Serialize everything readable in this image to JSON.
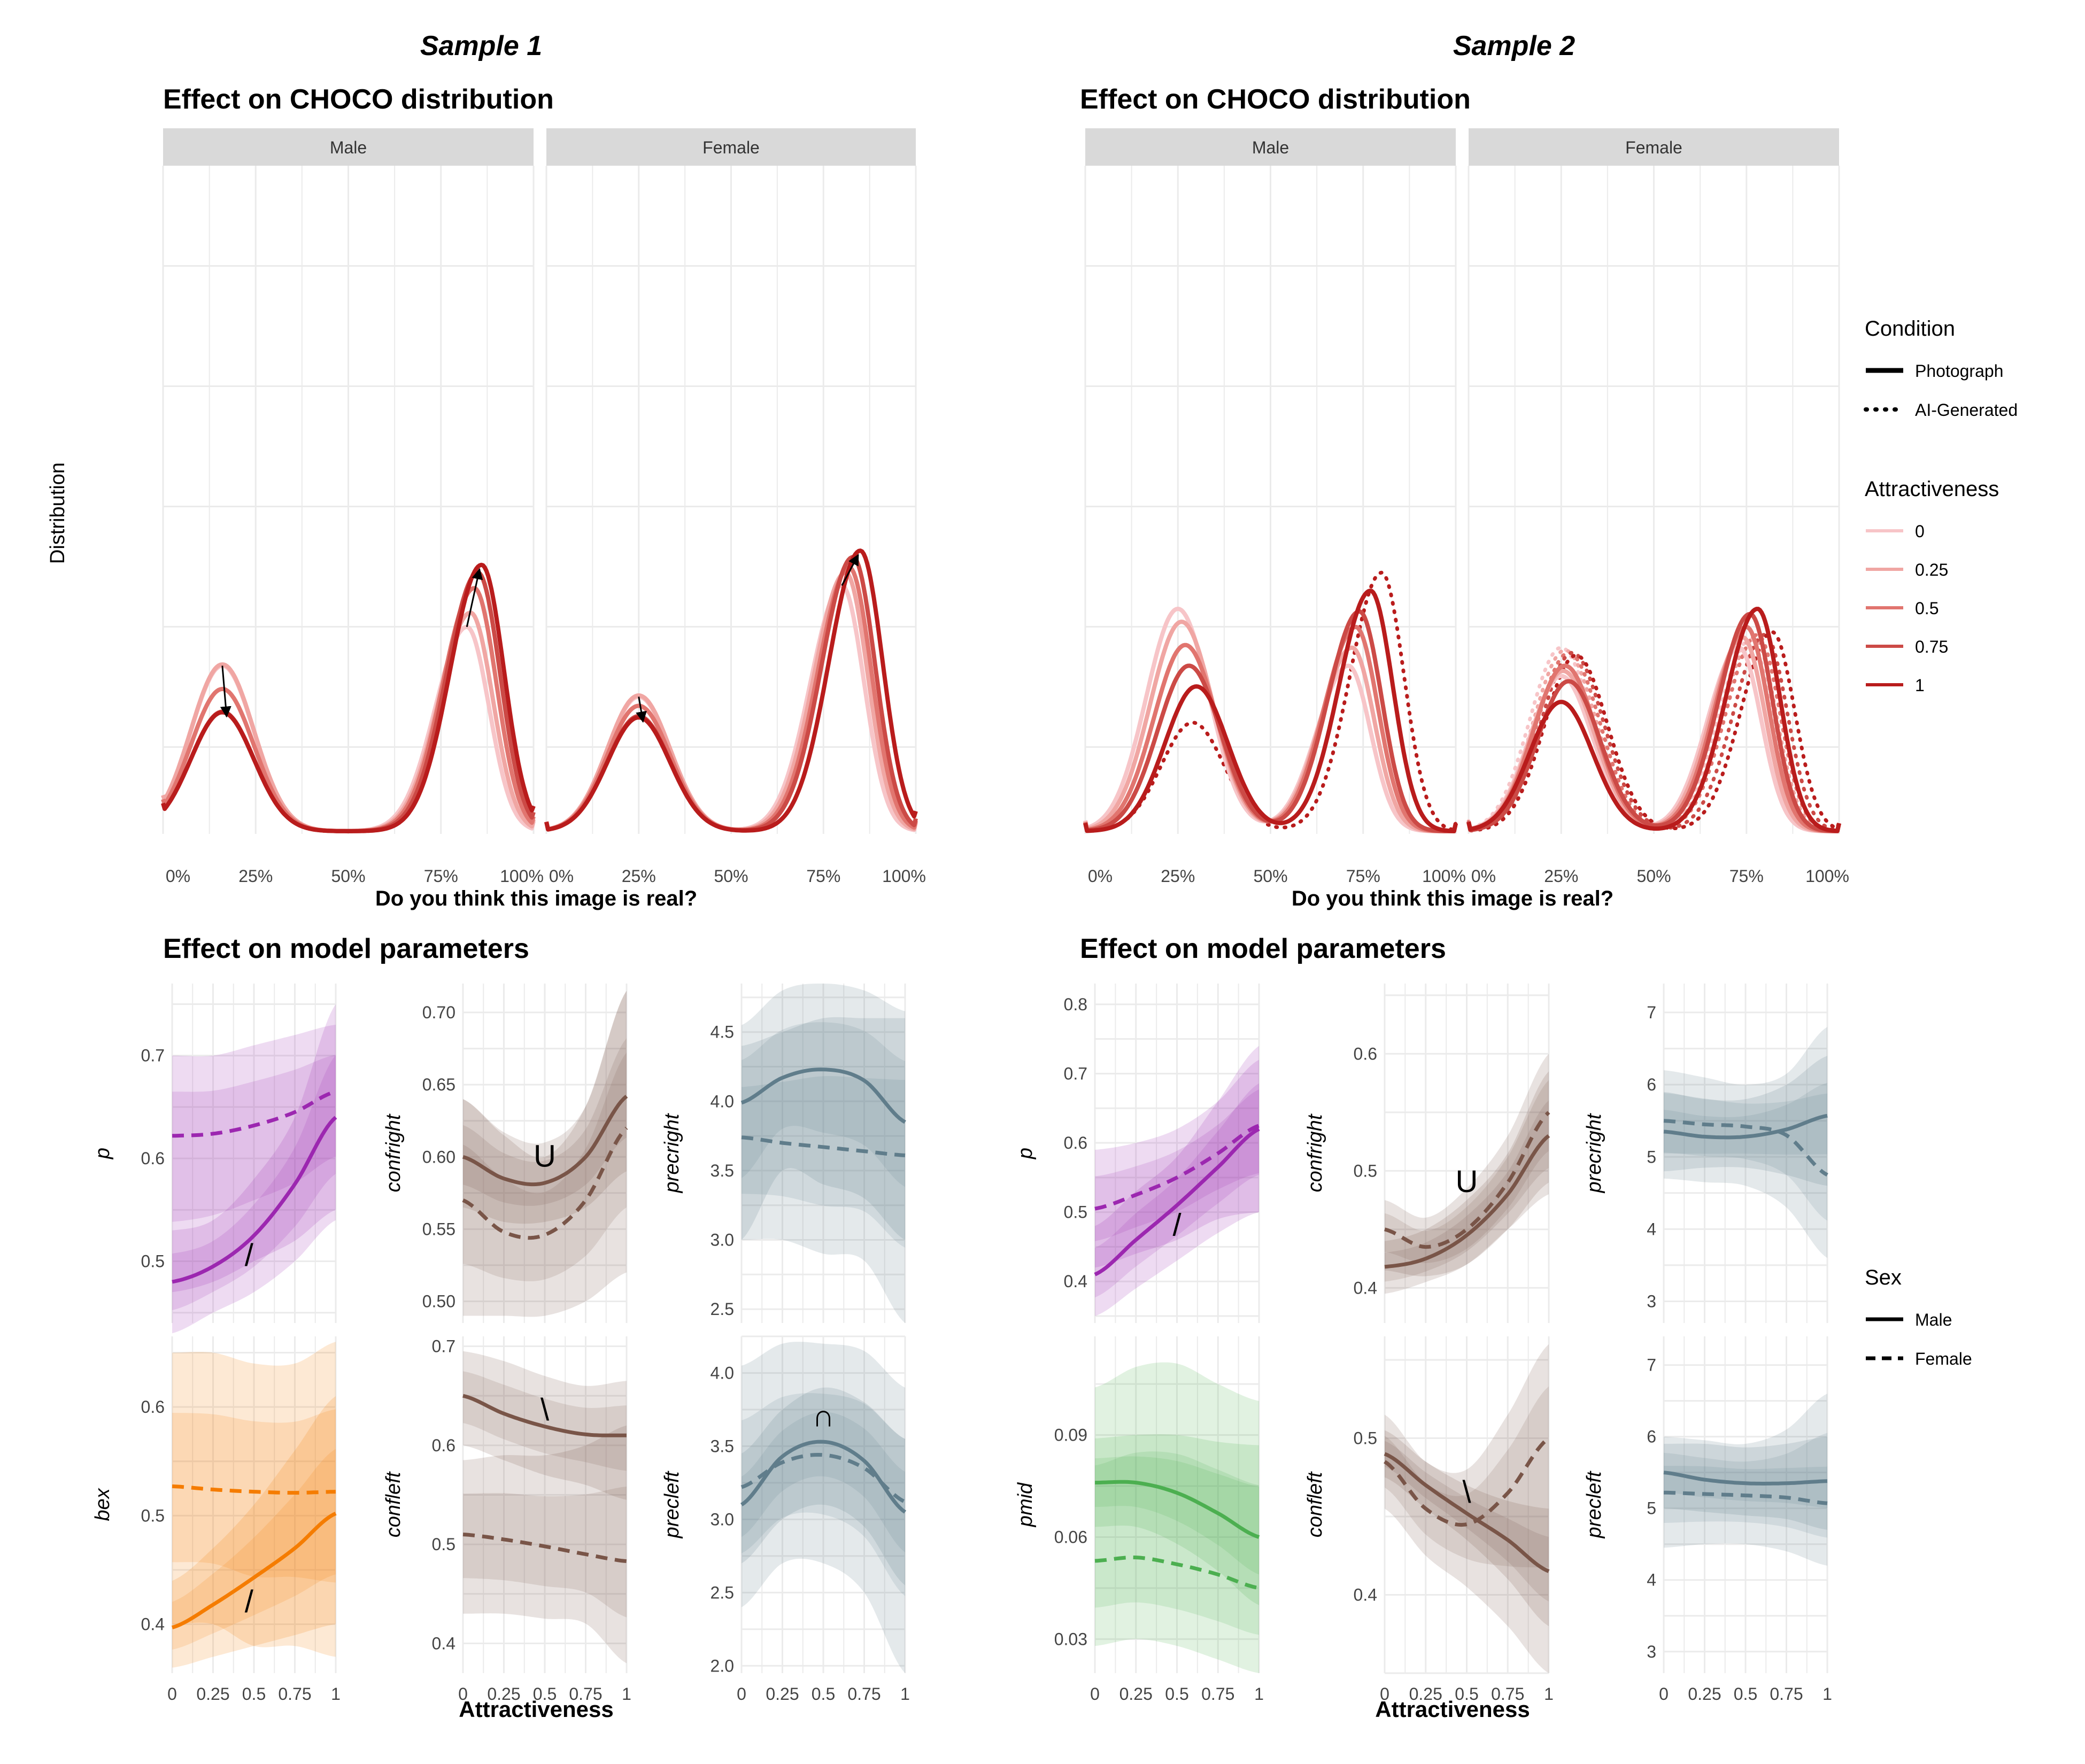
{
  "colors": {
    "attract": [
      "#f7c5c8",
      "#f0a6a3",
      "#e1756f",
      "#cc4a46",
      "#b91c1c"
    ],
    "p": "#9c27b0",
    "bex": "#f57c00",
    "conf": "#795548",
    "prec": "#607d8b",
    "pmid": "#4caf50",
    "strip": "#d9d9d9",
    "grid": "#ebebeb"
  },
  "sample_titles": [
    "Sample 1",
    "Sample 2"
  ],
  "section_titles": {
    "distribution": "Effect on CHOCO distribution",
    "parameters": "Effect on model parameters"
  },
  "axis_labels": {
    "distribution_x": "Do you think this image is real?",
    "distribution_y": "Distribution",
    "parameters_x": "Attractiveness"
  },
  "facets": [
    "Male",
    "Female"
  ],
  "pct_ticks": [
    "0%",
    "25%",
    "50%",
    "75%",
    "100%"
  ],
  "attr_ticks": [
    "0",
    "0.25",
    "0.5",
    "0.75",
    "1"
  ],
  "legend": {
    "condition_title": "Condition",
    "condition_items": [
      "Photograph",
      "AI-Generated"
    ],
    "attract_title": "Attractiveness",
    "attract_items": [
      "0",
      "0.25",
      "0.5",
      "0.75",
      "1"
    ],
    "sex_title": "Sex",
    "sex_items": [
      "Male",
      "Female"
    ]
  },
  "chart_data": [
    {
      "type": "line",
      "panel": "Sample 1 - CHOCO distribution - Male",
      "x_range": [
        0,
        1
      ],
      "attractiveness": [
        0,
        0.25,
        0.5,
        0.75,
        1
      ],
      "photograph": {
        "left_peak_location": 0.16,
        "left_peak_height": [
          0.64,
          0.645,
          0.55,
          0.462,
          0.46
        ],
        "right_peak_location": [
          0.82,
          0.83,
          0.84,
          0.85,
          0.86
        ],
        "right_peak_height": [
          0.79,
          0.845,
          0.94,
          1.0,
          1.03
        ]
      },
      "arrows": [
        "left peak decreases with attractiveness",
        "right peak increases with attractiveness"
      ]
    },
    {
      "type": "line",
      "panel": "Sample 1 - CHOCO distribution - Female",
      "x_range": [
        0,
        1
      ],
      "attractiveness": [
        0,
        0.25,
        0.5,
        0.75,
        1
      ],
      "photograph": {
        "left_peak_location": 0.25,
        "left_peak_height": [
          0.52,
          0.525,
          0.485,
          0.445,
          0.44
        ],
        "right_peak_location": [
          0.8,
          0.81,
          0.82,
          0.83,
          0.85
        ],
        "right_peak_height": [
          0.95,
          1.0,
          1.02,
          1.06,
          1.085
        ]
      },
      "arrows": [
        "left peak decreases with attractiveness",
        "right peak increases with attractiveness"
      ]
    },
    {
      "type": "line",
      "panel": "Sample 2 - CHOCO distribution - Male",
      "x_range": [
        0,
        1
      ],
      "attractiveness": [
        0,
        0.25,
        0.5,
        0.75,
        1
      ],
      "photograph": {
        "left_peak_location": [
          0.25,
          0.26,
          0.27,
          0.28,
          0.3
        ],
        "left_peak_height": [
          0.86,
          0.81,
          0.72,
          0.64,
          0.56
        ],
        "right_peak_location": [
          0.71,
          0.72,
          0.73,
          0.74,
          0.77
        ],
        "right_peak_height": [
          0.64,
          0.71,
          0.79,
          0.85,
          0.93
        ]
      },
      "ai_generated": {
        "left_peak_location": 0.29,
        "left_peak_height": 0.42,
        "right_peak_location": 0.8,
        "right_peak_height": 1.0
      }
    },
    {
      "type": "line",
      "panel": "Sample 2 - CHOCO distribution - Female",
      "x_range": [
        0,
        1
      ],
      "attractiveness": [
        0,
        0.25,
        0.5,
        0.75,
        1
      ],
      "photograph": {
        "left_peak_location": [
          0.25,
          0.255,
          0.26,
          0.27,
          0.25
        ],
        "left_peak_height": [
          0.6,
          0.62,
          0.64,
          0.58,
          0.5
        ],
        "right_peak_location": [
          0.73,
          0.74,
          0.75,
          0.76,
          0.78
        ],
        "right_peak_height": [
          0.71,
          0.75,
          0.79,
          0.84,
          0.86
        ]
      },
      "ai_generated": {
        "left_peak_location": [
          0.25,
          0.26,
          0.27,
          0.28,
          0.29
        ],
        "left_peak_height": [
          0.71,
          0.7,
          0.69,
          0.69,
          0.68
        ],
        "right_peak_location": [
          0.76,
          0.77,
          0.78,
          0.8,
          0.82
        ],
        "right_peak_height": [
          0.74,
          0.75,
          0.76,
          0.76,
          0.77
        ]
      }
    },
    {
      "type": "line",
      "panel": "Sample 1 - p",
      "ylabel": "p",
      "ylim": [
        0.44,
        0.77
      ],
      "yticks": [
        "0.5",
        "0.6",
        "0.7"
      ],
      "x": [
        0,
        0.25,
        0.5,
        0.75,
        1
      ],
      "series": [
        {
          "sex": "Male",
          "values": [
            0.48,
            0.495,
            0.525,
            0.575,
            0.64
          ],
          "lower": [
            0.43,
            0.45,
            0.47,
            0.5,
            0.54
          ],
          "upper": [
            0.53,
            0.54,
            0.58,
            0.64,
            0.75
          ]
        },
        {
          "sex": "Female",
          "values": [
            0.622,
            0.624,
            0.632,
            0.645,
            0.665
          ],
          "lower": [
            0.47,
            0.48,
            0.5,
            0.52,
            0.55
          ],
          "upper": [
            0.7,
            0.7,
            0.71,
            0.72,
            0.73
          ]
        }
      ],
      "annotation": {
        "text": "/",
        "x": 0.47,
        "y": 0.505
      }
    },
    {
      "type": "line",
      "panel": "Sample 1 - confright",
      "ylabel": "confright",
      "ylim": [
        0.485,
        0.72
      ],
      "yticks": [
        "0.50",
        "0.55",
        "0.60",
        "0.65",
        "0.70"
      ],
      "x": [
        0,
        0.25,
        0.5,
        0.75,
        1
      ],
      "series": [
        {
          "sex": "Male",
          "values": [
            0.6,
            0.585,
            0.582,
            0.6,
            0.642
          ],
          "lower": [
            0.565,
            0.555,
            0.555,
            0.565,
            0.59
          ],
          "upper": [
            0.64,
            0.617,
            0.61,
            0.635,
            0.715
          ]
        },
        {
          "sex": "Female",
          "values": [
            0.57,
            0.548,
            0.546,
            0.57,
            0.62
          ],
          "lower": [
            0.49,
            0.49,
            0.49,
            0.5,
            0.52
          ],
          "upper": [
            0.64,
            0.615,
            0.6,
            0.635,
            0.715
          ]
        }
      ],
      "annotation": {
        "text": "U",
        "x": 0.5,
        "y": 0.6
      }
    },
    {
      "type": "line",
      "panel": "Sample 1 - precright",
      "ylabel": "precright",
      "ylim": [
        2.4,
        4.85
      ],
      "yticks": [
        "2.5",
        "3.0",
        "3.5",
        "4.0",
        "4.5"
      ],
      "x": [
        0,
        0.25,
        0.5,
        0.75,
        1
      ],
      "series": [
        {
          "sex": "Male",
          "values": [
            3.99,
            4.17,
            4.23,
            4.15,
            3.85
          ],
          "lower": [
            3.0,
            3.5,
            3.4,
            3.3,
            3.0
          ],
          "upper": [
            4.55,
            4.8,
            4.85,
            4.8,
            4.65
          ]
        },
        {
          "sex": "Female",
          "values": [
            3.74,
            3.7,
            3.67,
            3.64,
            3.61
          ],
          "lower": [
            3.0,
            3.0,
            2.9,
            2.85,
            2.4
          ],
          "upper": [
            4.4,
            4.5,
            4.6,
            4.6,
            4.6
          ]
        }
      ]
    },
    {
      "type": "line",
      "panel": "Sample 1 - bex",
      "ylabel": "bex",
      "ylim": [
        0.355,
        0.665
      ],
      "yticks": [
        "0.4",
        "0.5",
        "0.6"
      ],
      "x": [
        0,
        0.25,
        0.5,
        0.75,
        1
      ],
      "series": [
        {
          "sex": "Male",
          "values": [
            0.397,
            0.418,
            0.443,
            0.47,
            0.502
          ],
          "lower": [
            0.36,
            0.37,
            0.38,
            0.39,
            0.4
          ],
          "upper": [
            0.44,
            0.47,
            0.51,
            0.56,
            0.61
          ]
        },
        {
          "sex": "Female",
          "values": [
            0.527,
            0.524,
            0.522,
            0.521,
            0.522
          ],
          "lower": [
            0.4,
            0.4,
            0.38,
            0.38,
            0.37
          ],
          "upper": [
            0.65,
            0.65,
            0.64,
            0.64,
            0.66
          ]
        }
      ],
      "annotation": {
        "text": "/",
        "x": 0.47,
        "y": 0.42
      }
    },
    {
      "type": "line",
      "panel": "Sample 1 - confleft",
      "ylabel": "confleft",
      "ylim": [
        0.37,
        0.71
      ],
      "yticks": [
        "0.4",
        "0.5",
        "0.6",
        "0.7"
      ],
      "x": [
        0,
        0.25,
        0.5,
        0.75,
        1
      ],
      "series": [
        {
          "sex": "Male",
          "values": [
            0.65,
            0.632,
            0.619,
            0.611,
            0.61
          ],
          "lower": [
            0.6,
            0.585,
            0.57,
            0.56,
            0.545
          ],
          "upper": [
            0.695,
            0.685,
            0.67,
            0.66,
            0.665
          ]
        },
        {
          "sex": "Female",
          "values": [
            0.51,
            0.505,
            0.498,
            0.49,
            0.483
          ],
          "lower": [
            0.43,
            0.43,
            0.425,
            0.42,
            0.38
          ],
          "upper": [
            0.585,
            0.59,
            0.59,
            0.6,
            0.62
          ]
        }
      ],
      "annotation": {
        "text": "\\",
        "x": 0.5,
        "y": 0.635
      }
    },
    {
      "type": "line",
      "panel": "Sample 1 - precleft",
      "ylabel": "precleft",
      "ylim": [
        1.95,
        4.25
      ],
      "yticks": [
        "2.0",
        "2.5",
        "3.0",
        "3.5",
        "4.0"
      ],
      "x": [
        0,
        0.25,
        0.5,
        0.75,
        1
      ],
      "series": [
        {
          "sex": "Male",
          "values": [
            3.1,
            3.43,
            3.53,
            3.4,
            3.05
          ],
          "lower": [
            2.7,
            3.0,
            3.1,
            2.95,
            2.55
          ],
          "upper": [
            3.45,
            3.75,
            3.9,
            3.8,
            3.55
          ]
        },
        {
          "sex": "Female",
          "values": [
            3.22,
            3.39,
            3.44,
            3.35,
            3.12
          ],
          "lower": [
            2.4,
            2.7,
            2.7,
            2.5,
            1.95
          ],
          "upper": [
            4.05,
            4.2,
            4.2,
            4.15,
            3.9
          ]
        }
      ],
      "annotation": {
        "text": "∩",
        "x": 0.5,
        "y": 3.7
      }
    },
    {
      "type": "line",
      "panel": "Sample 2 - p",
      "ylabel": "p",
      "ylim": [
        0.34,
        0.83
      ],
      "yticks": [
        "0.4",
        "0.5",
        "0.6",
        "0.7",
        "0.8"
      ],
      "x": [
        0,
        0.25,
        0.5,
        0.75,
        1
      ],
      "series": [
        {
          "sex": "Male",
          "values": [
            0.41,
            0.46,
            0.51,
            0.565,
            0.62
          ],
          "lower": [
            0.35,
            0.39,
            0.43,
            0.47,
            0.5
          ],
          "upper": [
            0.48,
            0.53,
            0.58,
            0.66,
            0.74
          ]
        },
        {
          "sex": "Female",
          "values": [
            0.505,
            0.525,
            0.55,
            0.585,
            0.625
          ],
          "lower": [
            0.42,
            0.44,
            0.46,
            0.49,
            0.5
          ],
          "upper": [
            0.59,
            0.6,
            0.62,
            0.66,
            0.72
          ]
        }
      ],
      "annotation": {
        "text": "/",
        "x": 0.5,
        "y": 0.48
      }
    },
    {
      "type": "line",
      "panel": "Sample 2 - confright",
      "ylabel": "confright",
      "ylim": [
        0.37,
        0.66
      ],
      "yticks": [
        "0.4",
        "0.5",
        "0.6"
      ],
      "x": [
        0,
        0.25,
        0.5,
        0.75,
        1
      ],
      "series": [
        {
          "sex": "Male",
          "values": [
            0.418,
            0.425,
            0.445,
            0.48,
            0.53
          ],
          "lower": [
            0.395,
            0.405,
            0.42,
            0.45,
            0.48
          ],
          "upper": [
            0.44,
            0.45,
            0.475,
            0.515,
            0.585
          ]
        },
        {
          "sex": "Female",
          "values": [
            0.45,
            0.435,
            0.45,
            0.49,
            0.55
          ],
          "lower": [
            0.415,
            0.41,
            0.42,
            0.45,
            0.49
          ],
          "upper": [
            0.475,
            0.46,
            0.485,
            0.53,
            0.6
          ]
        }
      ],
      "annotation": {
        "text": "U",
        "x": 0.5,
        "y": 0.49
      }
    },
    {
      "type": "line",
      "panel": "Sample 2 - precright",
      "ylabel": "precright",
      "ylim": [
        2.7,
        7.4
      ],
      "yticks": [
        "3",
        "4",
        "5",
        "6",
        "7"
      ],
      "x": [
        0,
        0.25,
        0.5,
        0.75,
        1
      ],
      "series": [
        {
          "sex": "Male",
          "values": [
            5.35,
            5.28,
            5.28,
            5.38,
            5.57
          ],
          "lower": [
            4.8,
            4.85,
            4.85,
            4.75,
            4.6
          ],
          "upper": [
            5.9,
            5.8,
            5.8,
            6.0,
            6.4
          ]
        },
        {
          "sex": "Female",
          "values": [
            5.5,
            5.45,
            5.42,
            5.3,
            4.75
          ],
          "lower": [
            4.7,
            4.65,
            4.6,
            4.3,
            3.6
          ],
          "upper": [
            6.2,
            6.1,
            6.0,
            6.15,
            6.8
          ]
        }
      ]
    },
    {
      "type": "line",
      "panel": "Sample 2 - pmid",
      "ylabel": "pmid",
      "ylim": [
        0.02,
        0.119
      ],
      "yticks": [
        "0.03",
        "0.06",
        "0.09"
      ],
      "x": [
        0,
        0.25,
        0.5,
        0.75,
        1
      ],
      "series": [
        {
          "sex": "Male",
          "values": [
            0.076,
            0.076,
            0.073,
            0.067,
            0.06
          ],
          "lower": [
            0.063,
            0.063,
            0.058,
            0.05,
            0.04
          ],
          "upper": [
            0.089,
            0.09,
            0.09,
            0.088,
            0.087
          ]
        },
        {
          "sex": "Female",
          "values": [
            0.053,
            0.054,
            0.052,
            0.049,
            0.045
          ],
          "lower": [
            0.028,
            0.03,
            0.028,
            0.024,
            0.02
          ],
          "upper": [
            0.104,
            0.11,
            0.111,
            0.105,
            0.1
          ]
        }
      ]
    },
    {
      "type": "line",
      "panel": "Sample 2 - confleft",
      "ylabel": "confleft",
      "ylim": [
        0.35,
        0.565
      ],
      "yticks": [
        "0.4",
        "0.5"
      ],
      "x": [
        0,
        0.25,
        0.5,
        0.75,
        1
      ],
      "series": [
        {
          "sex": "Male",
          "values": [
            0.49,
            0.47,
            0.452,
            0.435,
            0.415
          ],
          "lower": [
            0.475,
            0.455,
            0.435,
            0.41,
            0.38
          ],
          "upper": [
            0.505,
            0.485,
            0.47,
            0.46,
            0.455
          ]
        },
        {
          "sex": "Female",
          "values": [
            0.485,
            0.455,
            0.445,
            0.465,
            0.5
          ],
          "lower": [
            0.455,
            0.425,
            0.405,
            0.38,
            0.35
          ],
          "upper": [
            0.515,
            0.485,
            0.48,
            0.515,
            0.56
          ]
        }
      ],
      "annotation": {
        "text": "\\",
        "x": 0.5,
        "y": 0.465
      }
    },
    {
      "type": "line",
      "panel": "Sample 2 - precleft",
      "ylabel": "precleft",
      "ylim": [
        2.7,
        7.4
      ],
      "yticks": [
        "3",
        "4",
        "5",
        "6",
        "7"
      ],
      "x": [
        0,
        0.25,
        0.5,
        0.75,
        1
      ],
      "series": [
        {
          "sex": "Male",
          "values": [
            5.5,
            5.4,
            5.35,
            5.35,
            5.38
          ],
          "lower": [
            5.0,
            4.95,
            4.9,
            4.85,
            4.7
          ],
          "upper": [
            6.0,
            5.95,
            5.9,
            6.1,
            6.6
          ]
        },
        {
          "sex": "Female",
          "values": [
            5.22,
            5.2,
            5.18,
            5.15,
            5.07
          ],
          "lower": [
            4.45,
            4.5,
            4.5,
            4.4,
            4.2
          ],
          "upper": [
            5.9,
            5.9,
            5.85,
            5.9,
            6.0
          ]
        }
      ]
    }
  ]
}
